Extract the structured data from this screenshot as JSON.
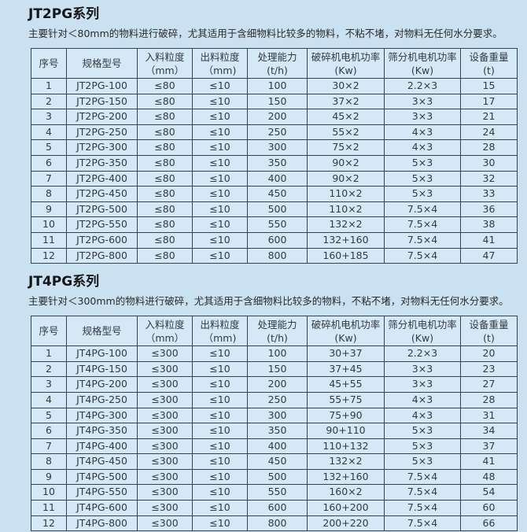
{
  "page": {
    "background_color": "#cae1f1",
    "table_border_color": "#36434f",
    "table_cell_background": "#d5e8f6"
  },
  "sections": [
    {
      "title": "JT2PG系列",
      "description": "主要针对＜80mm的物料进行破碎，尤其适用于含细物料比较多的物料，不粘不堵，对物料无任何水分要求。",
      "table": {
        "headers": [
          [
            "序号"
          ],
          [
            "规格型号"
          ],
          [
            "入料粒度",
            "（mm）"
          ],
          [
            "出料粒度",
            "（mm)"
          ],
          [
            "处理能力",
            "(t/h)"
          ],
          [
            "破碎机电机功率",
            "(Kw)"
          ],
          [
            "筛分机电机功率",
            "(Kw)"
          ],
          [
            "设备重量",
            "(t)"
          ]
        ],
        "rows": [
          [
            "1",
            "JT2PG-100",
            "≤80",
            "≤10",
            "100",
            "30×2",
            "2.2×3",
            "15"
          ],
          [
            "2",
            "JT2PG-150",
            "≤80",
            "≤10",
            "150",
            "37×2",
            "3×3",
            "17"
          ],
          [
            "3",
            "JT2PG-200",
            "≤80",
            "≤10",
            "200",
            "45×2",
            "3×3",
            "21"
          ],
          [
            "4",
            "JT2PG-250",
            "≤80",
            "≤10",
            "250",
            "55×2",
            "4×3",
            "24"
          ],
          [
            "5",
            "JT2PG-300",
            "≤80",
            "≤10",
            "300",
            "75×2",
            "4×3",
            "28"
          ],
          [
            "6",
            "JT2PG-350",
            "≤80",
            "≤10",
            "350",
            "90×2",
            "5×3",
            "30"
          ],
          [
            "7",
            "JT2PG-400",
            "≤80",
            "≤10",
            "400",
            "90×2",
            "5×3",
            "32"
          ],
          [
            "8",
            "JT2PG-450",
            "≤80",
            "≤10",
            "450",
            "110×2",
            "5×3",
            "33"
          ],
          [
            "9",
            "JT2PG-500",
            "≤80",
            "≤10",
            "500",
            "110×2",
            "7.5×4",
            "36"
          ],
          [
            "10",
            "JT2PG-550",
            "≤80",
            "≤10",
            "550",
            "132×2",
            "7.5×4",
            "38"
          ],
          [
            "11",
            "JT2PG-600",
            "≤80",
            "≤10",
            "600",
            "132+160",
            "7.5×4",
            "41"
          ],
          [
            "12",
            "JT2PG-800",
            "≤80",
            "≤10",
            "800",
            "160+185",
            "7.5×4",
            "47"
          ]
        ]
      }
    },
    {
      "title": "JT4PG系列",
      "description": "主要针对＜300mm的物料进行破碎，尤其适用于含细物料比较多的物料，不粘不堵，对物料无任何水分要求。",
      "table": {
        "headers": [
          [
            "序号"
          ],
          [
            "规格型号"
          ],
          [
            "入料粒度",
            "（mm）"
          ],
          [
            "出料粒度",
            "（mm)"
          ],
          [
            "处理能力",
            "(t/h)"
          ],
          [
            "破碎机电机功率",
            "(Kw)"
          ],
          [
            "筛分机电机功率",
            "(Kw)"
          ],
          [
            "设备重量",
            "(t)"
          ]
        ],
        "rows": [
          [
            "1",
            "JT4PG-100",
            "≤300",
            "≤10",
            "100",
            "30+37",
            "2.2×3",
            "20"
          ],
          [
            "2",
            "JT4PG-150",
            "≤300",
            "≤10",
            "150",
            "37+45",
            "3×3",
            "23"
          ],
          [
            "3",
            "JT4PG-200",
            "≤300",
            "≤10",
            "200",
            "45+55",
            "3×3",
            "27"
          ],
          [
            "4",
            "JT4PG-250",
            "≤300",
            "≤10",
            "250",
            "55+75",
            "4×3",
            "28"
          ],
          [
            "5",
            "JT4PG-300",
            "≤300",
            "≤10",
            "300",
            "75+90",
            "4×3",
            "31"
          ],
          [
            "6",
            "JT4PG-350",
            "≤300",
            "≤10",
            "350",
            "90+110",
            "5×3",
            "34"
          ],
          [
            "7",
            "JT4PG-400",
            "≤300",
            "≤10",
            "400",
            "110+132",
            "5×3",
            "37"
          ],
          [
            "8",
            "JT4PG-450",
            "≤300",
            "≤10",
            "450",
            "132×2",
            "5×3",
            "41"
          ],
          [
            "9",
            "JT4PG-500",
            "≤300",
            "≤10",
            "500",
            "132+160",
            "7.5×4",
            "48"
          ],
          [
            "10",
            "JT4PG-550",
            "≤300",
            "≤10",
            "550",
            "160×2",
            "7.5×4",
            "54"
          ],
          [
            "11",
            "JT4PG-600",
            "≤300",
            "≤10",
            "600",
            "160+200",
            "7.5×4",
            "60"
          ],
          [
            "12",
            "JT4PG-800",
            "≤300",
            "≤10",
            "800",
            "200+220",
            "7.5×4",
            "66"
          ]
        ]
      }
    }
  ]
}
